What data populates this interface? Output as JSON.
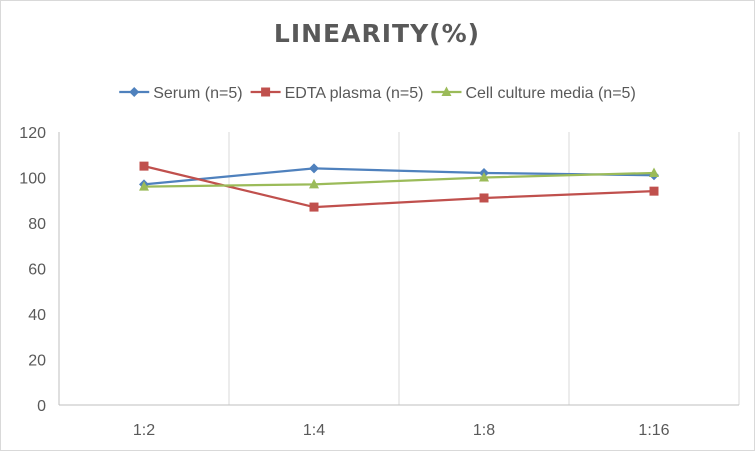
{
  "chart_data": {
    "type": "line",
    "title": "LINEARITY(%)",
    "xlabel": "",
    "ylabel": "",
    "categories": [
      "1:2",
      "1:4",
      "1:8",
      "1:16"
    ],
    "ylim": [
      0,
      120
    ],
    "yticks": [
      0,
      20,
      40,
      60,
      80,
      100,
      120
    ],
    "grid": "vertical",
    "legend_position": "top",
    "series": [
      {
        "name": "Serum (n=5)",
        "values": [
          97,
          104,
          102,
          101
        ],
        "color": "#4f81bd",
        "marker": "diamond"
      },
      {
        "name": "EDTA plasma (n=5)",
        "values": [
          105,
          87,
          91,
          94
        ],
        "color": "#c0504d",
        "marker": "square"
      },
      {
        "name": "Cell culture media (n=5)",
        "values": [
          96,
          97,
          100,
          102
        ],
        "color": "#9bbb59",
        "marker": "triangle"
      }
    ]
  }
}
